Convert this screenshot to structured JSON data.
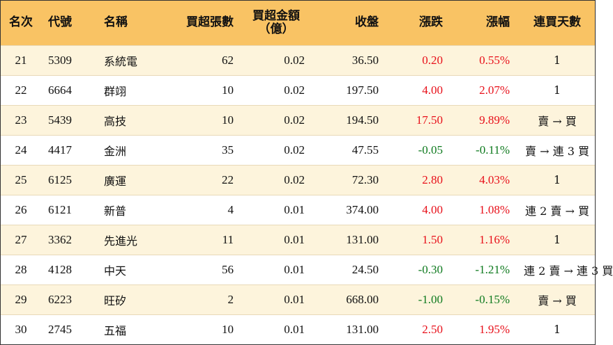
{
  "colors": {
    "header_bg": "#f9c364",
    "odd_row_bg": "#fdf4dc",
    "up": "#e8101a",
    "down": "#0e7a1e"
  },
  "headers": {
    "rank": "名次",
    "code": "代號",
    "name": "名稱",
    "net_buy_lots": "買超張數",
    "net_buy_amount_line1": "買超金額",
    "net_buy_amount_line2": "（億）",
    "close": "收盤",
    "change": "漲跌",
    "change_pct": "漲幅",
    "consecutive_days": "連買天數"
  },
  "rows": [
    {
      "rank": "21",
      "code": "5309",
      "name": "系統電",
      "lots": "62",
      "amount": "0.02",
      "close": "36.50",
      "change": "0.20",
      "pct": "0.55%",
      "days": "1",
      "dir": "up"
    },
    {
      "rank": "22",
      "code": "6664",
      "name": "群翊",
      "lots": "10",
      "amount": "0.02",
      "close": "197.50",
      "change": "4.00",
      "pct": "2.07%",
      "days": "1",
      "dir": "up"
    },
    {
      "rank": "23",
      "code": "5439",
      "name": "高技",
      "lots": "10",
      "amount": "0.02",
      "close": "194.50",
      "change": "17.50",
      "pct": "9.89%",
      "days": "賣 → 買",
      "dir": "up"
    },
    {
      "rank": "24",
      "code": "4417",
      "name": "金洲",
      "lots": "35",
      "amount": "0.02",
      "close": "47.55",
      "change": "-0.05",
      "pct": "-0.11%",
      "days": "賣 → 連 3 買",
      "dir": "down"
    },
    {
      "rank": "25",
      "code": "6125",
      "name": "廣運",
      "lots": "22",
      "amount": "0.02",
      "close": "72.30",
      "change": "2.80",
      "pct": "4.03%",
      "days": "1",
      "dir": "up"
    },
    {
      "rank": "26",
      "code": "6121",
      "name": "新普",
      "lots": "4",
      "amount": "0.01",
      "close": "374.00",
      "change": "4.00",
      "pct": "1.08%",
      "days": "連 2 賣 → 買",
      "dir": "up"
    },
    {
      "rank": "27",
      "code": "3362",
      "name": "先進光",
      "lots": "11",
      "amount": "0.01",
      "close": "131.00",
      "change": "1.50",
      "pct": "1.16%",
      "days": "1",
      "dir": "up"
    },
    {
      "rank": "28",
      "code": "4128",
      "name": "中天",
      "lots": "56",
      "amount": "0.01",
      "close": "24.50",
      "change": "-0.30",
      "pct": "-1.21%",
      "days": "連 2 賣 → 連 3 買",
      "dir": "down"
    },
    {
      "rank": "29",
      "code": "6223",
      "name": "旺矽",
      "lots": "2",
      "amount": "0.01",
      "close": "668.00",
      "change": "-1.00",
      "pct": "-0.15%",
      "days": "賣 → 買",
      "dir": "down"
    },
    {
      "rank": "30",
      "code": "2745",
      "name": "五福",
      "lots": "10",
      "amount": "0.01",
      "close": "131.00",
      "change": "2.50",
      "pct": "1.95%",
      "days": "1",
      "dir": "up"
    }
  ]
}
